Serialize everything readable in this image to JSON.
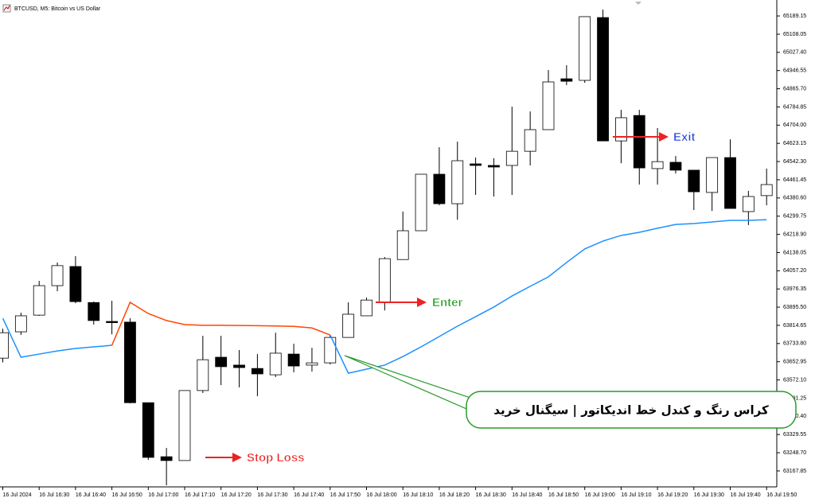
{
  "chart_data": {
    "type": "candlestick",
    "title": "BTCUSD, M5: Bitcoin vs US Dollar",
    "categories": [
      "16 Jul 2024",
      null,
      "16 Jul 16:30",
      null,
      "16 Jul 16:40",
      null,
      "16 Jul 16:50",
      null,
      "16 Jul 17:00",
      null,
      "16 Jul 17:10",
      null,
      "16 Jul 17:20",
      null,
      "16 Jul 17:30",
      null,
      "16 Jul 17:40",
      null,
      "16 Jul 17:50",
      null,
      "16 Jul 18:00",
      null,
      "16 Jul 18:10",
      null,
      "16 Jul 18:20",
      null,
      "16 Jul 18:30",
      null,
      "16 Jul 18:40",
      null,
      "16 Jul 18:50",
      null,
      "16 Jul 19:00",
      null,
      "16 Jul 19:10",
      null,
      "16 Jul 19:20",
      null,
      "16 Jul 19:30",
      null,
      "16 Jul 19:40",
      null,
      "16 Jul 19:50"
    ],
    "open": [
      63669,
      63786,
      63860,
      63991,
      64076,
      63916,
      63832,
      63829,
      63471,
      63231,
      63214,
      63525,
      63673,
      63638,
      63623,
      63595,
      63687,
      63638,
      63648,
      63761,
      63857,
      63917,
      64107,
      64235,
      64486,
      64355,
      64532,
      64525,
      64525,
      64588,
      64684,
      64910,
      64903,
      65182,
      64634,
      64747,
      64511,
      64539,
      64504,
      64405,
      64560,
      64320,
      64391
    ],
    "high": [
      63800,
      63871,
      64012,
      64094,
      64122,
      63920,
      63924,
      63846,
      63471,
      63270,
      63525,
      63768,
      63768,
      63705,
      63687,
      63782,
      63733,
      63715,
      63772,
      63917,
      63938,
      64118,
      64320,
      64486,
      64606,
      64631,
      64560,
      64557,
      64786,
      64765,
      64949,
      64970,
      65186,
      65217,
      64772,
      64772,
      64691,
      64567,
      64504,
      64560,
      64641,
      64412,
      64511
    ],
    "low": [
      63650,
      63772,
      63857,
      63966,
      63913,
      63818,
      63775,
      63468,
      63217,
      63104,
      63214,
      63514,
      63549,
      63539,
      63500,
      63585,
      63606,
      63609,
      63641,
      63761,
      63857,
      63881,
      64107,
      64235,
      64348,
      64284,
      64394,
      64387,
      64394,
      64525,
      64684,
      64882,
      64892,
      64634,
      64535,
      64440,
      64440,
      64489,
      64327,
      64323,
      64334,
      64260,
      64348
    ],
    "close": [
      63782,
      63857,
      63991,
      64080,
      63920,
      63836,
      63830,
      63471,
      63228,
      63214,
      63525,
      63662,
      63631,
      63627,
      63599,
      63691,
      63634,
      63648,
      63761,
      63864,
      63927,
      64111,
      64235,
      64486,
      64355,
      64546,
      64525,
      64518,
      64588,
      64684,
      64896,
      64899,
      65186,
      64634,
      64737,
      64514,
      64542,
      64504,
      64408,
      64560,
      64334,
      64387,
      64440
    ],
    "up_color": "#ffffff",
    "down_color": "#000000",
    "lines": [
      {
        "color": "#1e90ff",
        "values": [
          63846,
          63673,
          63687,
          63701,
          63712,
          63719,
          63726,
          null,
          null,
          null,
          null,
          null,
          null,
          null,
          null,
          null,
          null,
          null,
          63772,
          63602,
          63620,
          63638,
          63676,
          63719,
          63765,
          63811,
          63853,
          63896,
          63945,
          63988,
          64030,
          64094,
          64154,
          64189,
          64214,
          64228,
          64246,
          64263,
          64267,
          64274,
          64281,
          64281,
          64284
        ]
      },
      {
        "color": "#ff4500",
        "values": [
          null,
          null,
          null,
          null,
          null,
          null,
          63726,
          63917,
          63867,
          63836,
          63818,
          63815,
          63815,
          63814,
          63813,
          63812,
          63810,
          63803,
          63772,
          null,
          null,
          null,
          null,
          null,
          null,
          null,
          null,
          null,
          null,
          null,
          null,
          null,
          null,
          null,
          null,
          null,
          null,
          null,
          null,
          null,
          null,
          null,
          null
        ]
      }
    ],
    "ylim": [
      63097,
      65260
    ],
    "yticks": [
      65189.15,
      65108.05,
      {
        "value": 65027.4,
        "label": "65027.40"
      },
      64946.55,
      {
        "value": 64865.7,
        "label": "64865.70"
      },
      64784.85,
      {
        "value": 64704,
        "label": "64704.00"
      },
      64623.15,
      {
        "value": 64542.3,
        "label": "64542.30"
      },
      64461.45,
      {
        "value": 64380.6,
        "label": "64380.60"
      },
      64299.75,
      {
        "value": 64218.9,
        "label": "64218.90"
      },
      64138.05,
      {
        "value": 64057.2,
        "label": "64057.20"
      },
      63976.35,
      {
        "value": 63895.5,
        "label": "63895.50"
      },
      63814.65,
      {
        "value": 63733.8,
        "label": "63733.80"
      },
      63652.95,
      {
        "value": 63572.1,
        "label": "63572.10"
      },
      63491.25,
      {
        "value": 63410.4,
        "label": "63410.40"
      },
      63329.55,
      {
        "value": 63248.7,
        "label": "63248.70"
      },
      63167.85
    ],
    "grid": false,
    "annotations": [
      {
        "text": "Enter",
        "color": "#1a9a1a"
      },
      {
        "text": "Exit",
        "color": "#1f3fd6"
      },
      {
        "text": "Stop Loss",
        "color": "#ee2222"
      },
      {
        "text": "کراس رنگ و کندل خط اندیکاتور | سیگنال خرید",
        "color": "#000000"
      }
    ]
  }
}
